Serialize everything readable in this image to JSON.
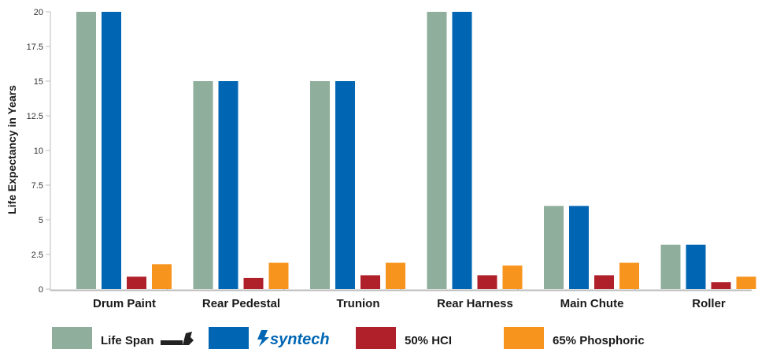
{
  "chart_data": {
    "type": "bar",
    "ylabel": "Life Expectancy in Years",
    "xlabel": "",
    "ylim": [
      0,
      20
    ],
    "yticks": [
      "0",
      "2.5",
      "5",
      "7.5",
      "10",
      "12.5",
      "15",
      "17.5",
      "20"
    ],
    "grid": false,
    "legend_position": "bottom",
    "categories": [
      "Drum Paint",
      "Rear Pedestal",
      "Trunion",
      "Rear Harness",
      "Main Chute",
      "Roller"
    ],
    "series": [
      {
        "name": "Life Span",
        "color": "#8fae9c",
        "values": [
          20,
          15,
          15,
          20,
          6,
          3.2
        ]
      },
      {
        "name": "syntech",
        "color": "#0066b3",
        "values": [
          20,
          15,
          15,
          20,
          6,
          3.2
        ]
      },
      {
        "name": "50% HCI",
        "color": "#b0202a",
        "values": [
          0.9,
          0.8,
          1.0,
          1.0,
          1.0,
          0.5
        ]
      },
      {
        "name": "65% Phosphoric",
        "color": "#f7941d",
        "values": [
          1.8,
          1.9,
          1.9,
          1.7,
          1.9,
          0.9
        ]
      }
    ]
  }
}
